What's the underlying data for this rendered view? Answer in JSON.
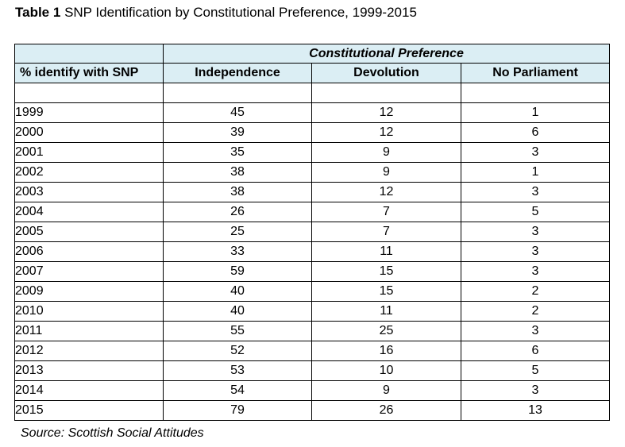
{
  "caption": {
    "label": "Table 1",
    "text": "SNP Identification by Constitutional Preference, 1999-2015"
  },
  "table": {
    "group_header": "Constitutional Preference",
    "columns": [
      "% identify with SNP",
      "Independence",
      "Devolution",
      "No Parliament"
    ],
    "rows": [
      {
        "year": "1999",
        "independence": "45",
        "devolution": "12",
        "no_parliament": "1"
      },
      {
        "year": "2000",
        "independence": "39",
        "devolution": "12",
        "no_parliament": "6"
      },
      {
        "year": "2001",
        "independence": "35",
        "devolution": "9",
        "no_parliament": "3"
      },
      {
        "year": "2002",
        "independence": "38",
        "devolution": "9",
        "no_parliament": "1"
      },
      {
        "year": "2003",
        "independence": "38",
        "devolution": "12",
        "no_parliament": "3"
      },
      {
        "year": "2004",
        "independence": "26",
        "devolution": "7",
        "no_parliament": "5"
      },
      {
        "year": "2005",
        "independence": "25",
        "devolution": "7",
        "no_parliament": "3"
      },
      {
        "year": "2006",
        "independence": "33",
        "devolution": "11",
        "no_parliament": "3"
      },
      {
        "year": "2007",
        "independence": "59",
        "devolution": "15",
        "no_parliament": "3"
      },
      {
        "year": "2009",
        "independence": "40",
        "devolution": "15",
        "no_parliament": "2"
      },
      {
        "year": "2010",
        "independence": "40",
        "devolution": "11",
        "no_parliament": "2"
      },
      {
        "year": "2011",
        "independence": "55",
        "devolution": "25",
        "no_parliament": "3"
      },
      {
        "year": "2012",
        "independence": "52",
        "devolution": "16",
        "no_parliament": "6"
      },
      {
        "year": "2013",
        "independence": "53",
        "devolution": "10",
        "no_parliament": "5"
      },
      {
        "year": "2014",
        "independence": "54",
        "devolution": "9",
        "no_parliament": "3"
      },
      {
        "year": "2015",
        "independence": "79",
        "devolution": "26",
        "no_parliament": "13"
      }
    ]
  },
  "source": "Source: Scottish Social Attitudes",
  "colors": {
    "header_fill": "#dbeef4",
    "border": "#000000"
  }
}
